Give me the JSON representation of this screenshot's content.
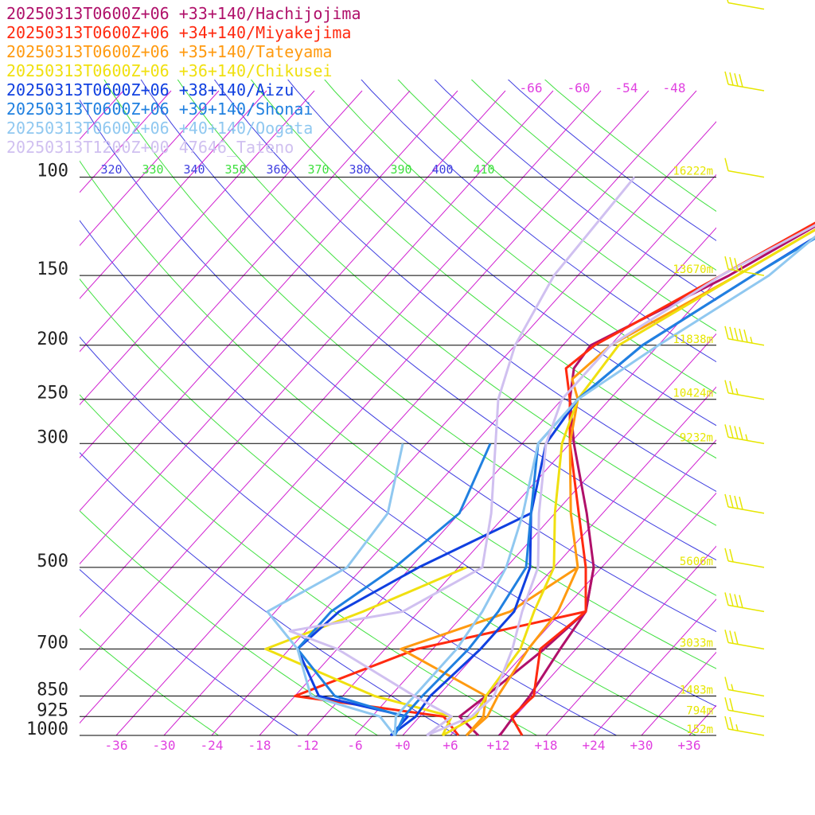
{
  "chart_data": {
    "type": "line",
    "title": "",
    "xlabel": "",
    "ylabel": "",
    "legend_position": "top-left",
    "pressure_ticks": [
      "100",
      "150",
      "200",
      "250",
      "300",
      "500",
      "700",
      "850",
      "925",
      "1000"
    ],
    "temperature_ticks": [
      "-36",
      "-30",
      "-24",
      "-18",
      "-12",
      "-6",
      "+0",
      "+6",
      "+12",
      "+18",
      "+24",
      "+30",
      "+36"
    ],
    "theta_ticks": [
      {
        "label": "320",
        "color": "#4040e0"
      },
      {
        "label": "330",
        "color": "#40e040"
      },
      {
        "label": "340",
        "color": "#4040e0"
      },
      {
        "label": "350",
        "color": "#40e040"
      },
      {
        "label": "360",
        "color": "#4040e0"
      },
      {
        "label": "370",
        "color": "#40e040"
      },
      {
        "label": "380",
        "color": "#4040e0"
      },
      {
        "label": "390",
        "color": "#40e040"
      },
      {
        "label": "400",
        "color": "#4040e0"
      },
      {
        "label": "410",
        "color": "#40e040"
      }
    ],
    "upper_temperature_labels": [
      "-66",
      "-60",
      "-54",
      "-48"
    ],
    "height_labels": [
      {
        "p": 100,
        "label": "16222m"
      },
      {
        "p": 150,
        "label": "13670m"
      },
      {
        "p": 200,
        "label": "11838m"
      },
      {
        "p": 250,
        "label": "10424m"
      },
      {
        "p": 300,
        "label": "9232m"
      },
      {
        "p": 500,
        "label": "5606m"
      },
      {
        "p": 700,
        "label": "3033m"
      },
      {
        "p": 850,
        "label": "1483m"
      },
      {
        "p": 925,
        "label": "794m"
      },
      {
        "p": 1000,
        "label": "152m"
      }
    ],
    "series": [
      {
        "name": "20250313T0600Z+06 +33+140/Hachijojima",
        "color": "#b0106a",
        "temperature": [
          [
            1000,
            12.2
          ],
          [
            925,
            11.8
          ],
          [
            850,
            11.5
          ],
          [
            700,
            10
          ],
          [
            600,
            9
          ],
          [
            500,
            5
          ],
          [
            400,
            -2
          ],
          [
            300,
            -11.5
          ],
          [
            250,
            -17
          ],
          [
            220,
            -20
          ],
          [
            200,
            -20.5
          ],
          [
            150,
            -11
          ],
          [
            110,
            -3
          ],
          [
            100,
            -2
          ],
          [
            70,
            15
          ]
        ],
        "dewpoint": [
          [
            1000,
            9.5
          ],
          [
            925,
            5
          ],
          [
            850,
            6
          ],
          [
            700,
            8
          ],
          [
            600,
            9
          ],
          [
            500,
            5
          ]
        ]
      },
      {
        "name": "20250313T0600Z+06 +34+140/Miyakejima",
        "color": "#ff2a10",
        "temperature": [
          [
            1000,
            15
          ],
          [
            925,
            11.5
          ],
          [
            850,
            12
          ],
          [
            700,
            7.5
          ],
          [
            600,
            9
          ],
          [
            500,
            4
          ],
          [
            400,
            -3
          ],
          [
            300,
            -12
          ],
          [
            250,
            -17
          ],
          [
            220,
            -21
          ],
          [
            200,
            -20
          ],
          [
            150,
            -12
          ],
          [
            100,
            -1
          ],
          [
            70,
            14
          ]
        ],
        "dewpoint": [
          [
            1000,
            7
          ],
          [
            925,
            3
          ],
          [
            850,
            -18
          ],
          [
            700,
            -8
          ],
          [
            600,
            9
          ]
        ]
      },
      {
        "name": "20250313T0600Z+06 +35+140/Tateyama",
        "color": "#ff9a10",
        "temperature": [
          [
            1000,
            8
          ],
          [
            925,
            8.5
          ],
          [
            850,
            7.5
          ],
          [
            700,
            6
          ],
          [
            600,
            5.5
          ],
          [
            500,
            3
          ],
          [
            400,
            -4
          ],
          [
            300,
            -12
          ],
          [
            250,
            -16
          ],
          [
            230,
            -19
          ],
          [
            200,
            -18
          ],
          [
            150,
            -10
          ],
          [
            100,
            0
          ],
          [
            70,
            13
          ]
        ],
        "dewpoint": [
          [
            1000,
            8
          ],
          [
            925,
            8
          ],
          [
            850,
            6
          ],
          [
            700,
            -10
          ],
          [
            600,
            -0.5
          ],
          [
            500,
            3
          ]
        ]
      },
      {
        "name": "20250313T0600Z+06 +36+140/Chikusei",
        "color": "#f0e010",
        "temperature": [
          [
            1000,
            5
          ],
          [
            925,
            7
          ],
          [
            850,
            6
          ],
          [
            700,
            5
          ],
          [
            600,
            2.5
          ],
          [
            500,
            0
          ],
          [
            400,
            -6
          ],
          [
            300,
            -13
          ],
          [
            250,
            -16
          ],
          [
            200,
            -17
          ],
          [
            150,
            -10
          ],
          [
            100,
            0
          ],
          [
            70,
            12
          ]
        ],
        "dewpoint": [
          [
            1000,
            5
          ],
          [
            925,
            4
          ],
          [
            850,
            -8
          ],
          [
            700,
            -27
          ],
          [
            600,
            -19
          ],
          [
            500,
            -11
          ]
        ]
      },
      {
        "name": "20250313T0600Z+06 +38+140/Aizu",
        "color": "#1040e0",
        "temperature": [
          [
            1000,
            -1.5
          ],
          [
            925,
            -0.5
          ],
          [
            850,
            -1
          ],
          [
            700,
            0
          ],
          [
            600,
            0
          ],
          [
            500,
            -3
          ],
          [
            400,
            -9
          ],
          [
            300,
            -15
          ],
          [
            250,
            -16
          ],
          [
            200,
            -14
          ],
          [
            150,
            -8
          ],
          [
            100,
            1
          ],
          [
            70,
            10
          ]
        ],
        "dewpoint": [
          [
            1000,
            -1.5
          ],
          [
            925,
            -1.5
          ],
          [
            850,
            -15
          ],
          [
            700,
            -23
          ],
          [
            600,
            -22
          ],
          [
            500,
            -17
          ],
          [
            400,
            -9
          ]
        ]
      },
      {
        "name": "20250313T0600Z+06 +39+140/Shonai",
        "color": "#2080e0",
        "temperature": [
          [
            1000,
            -1
          ],
          [
            925,
            -2
          ],
          [
            850,
            -2
          ],
          [
            700,
            -1.5
          ],
          [
            600,
            -2
          ],
          [
            500,
            -3.5
          ],
          [
            400,
            -9
          ],
          [
            300,
            -16
          ],
          [
            250,
            -16
          ],
          [
            200,
            -14
          ],
          [
            150,
            -8
          ],
          [
            100,
            1.5
          ],
          [
            70,
            9
          ]
        ],
        "dewpoint": [
          [
            1000,
            -1
          ],
          [
            925,
            -2
          ],
          [
            850,
            -13
          ],
          [
            700,
            -23
          ],
          [
            600,
            -23
          ],
          [
            500,
            -20
          ],
          [
            400,
            -18
          ],
          [
            300,
            -22
          ]
        ]
      },
      {
        "name": "20250313T0600Z+06 +40+140/Oogata",
        "color": "#90c8f0",
        "temperature": [
          [
            1000,
            -1
          ],
          [
            925,
            -3
          ],
          [
            850,
            -3
          ],
          [
            700,
            -3
          ],
          [
            600,
            -4
          ],
          [
            500,
            -6
          ],
          [
            400,
            -10
          ],
          [
            300,
            -16
          ],
          [
            250,
            -16
          ],
          [
            200,
            -12
          ],
          [
            150,
            -6
          ],
          [
            120,
            -4
          ],
          [
            100,
            1
          ],
          [
            70,
            1
          ]
        ],
        "dewpoint": [
          [
            1000,
            -1
          ],
          [
            925,
            -5
          ],
          [
            850,
            -16
          ],
          [
            700,
            -23
          ],
          [
            600,
            -31
          ],
          [
            500,
            -26
          ],
          [
            400,
            -27
          ],
          [
            300,
            -33
          ]
        ]
      },
      {
        "name": "20250313T1200Z+00 47646_Tateno",
        "color": "#d0c0f0",
        "temperature": [
          [
            1000,
            3
          ],
          [
            925,
            6.5
          ],
          [
            850,
            7
          ],
          [
            700,
            4
          ],
          [
            600,
            1
          ],
          [
            500,
            -2
          ],
          [
            400,
            -8
          ],
          [
            300,
            -15
          ],
          [
            250,
            -18
          ],
          [
            200,
            -18
          ],
          [
            150,
            -12
          ],
          [
            100,
            0
          ]
        ],
        "dewpoint": [
          [
            1000,
            3
          ],
          [
            925,
            4
          ],
          [
            850,
            -3
          ],
          [
            700,
            -18
          ],
          [
            650,
            -26
          ],
          [
            600,
            -14
          ],
          [
            500,
            -9
          ],
          [
            400,
            -14
          ],
          [
            250,
            -26
          ],
          [
            200,
            -30
          ],
          [
            150,
            -33
          ],
          [
            100,
            -34
          ]
        ]
      }
    ],
    "wind_barbs": [
      {
        "p": 1000,
        "speed_kt": 25
      },
      {
        "p": 925,
        "speed_kt": 20
      },
      {
        "p": 850,
        "speed_kt": 15
      },
      {
        "p": 700,
        "speed_kt": 30
      },
      {
        "p": 600,
        "speed_kt": 40
      },
      {
        "p": 500,
        "speed_kt": 20
      },
      {
        "p": 400,
        "speed_kt": 40
      },
      {
        "p": 300,
        "speed_kt": 45
      },
      {
        "p": 250,
        "speed_kt": 25
      },
      {
        "p": 200,
        "speed_kt": 55
      },
      {
        "p": 150,
        "speed_kt": 35
      },
      {
        "p": 100,
        "speed_kt": 10
      },
      {
        "p": 70,
        "speed_kt": 40
      },
      {
        "p": 50,
        "speed_kt": 10
      }
    ]
  }
}
